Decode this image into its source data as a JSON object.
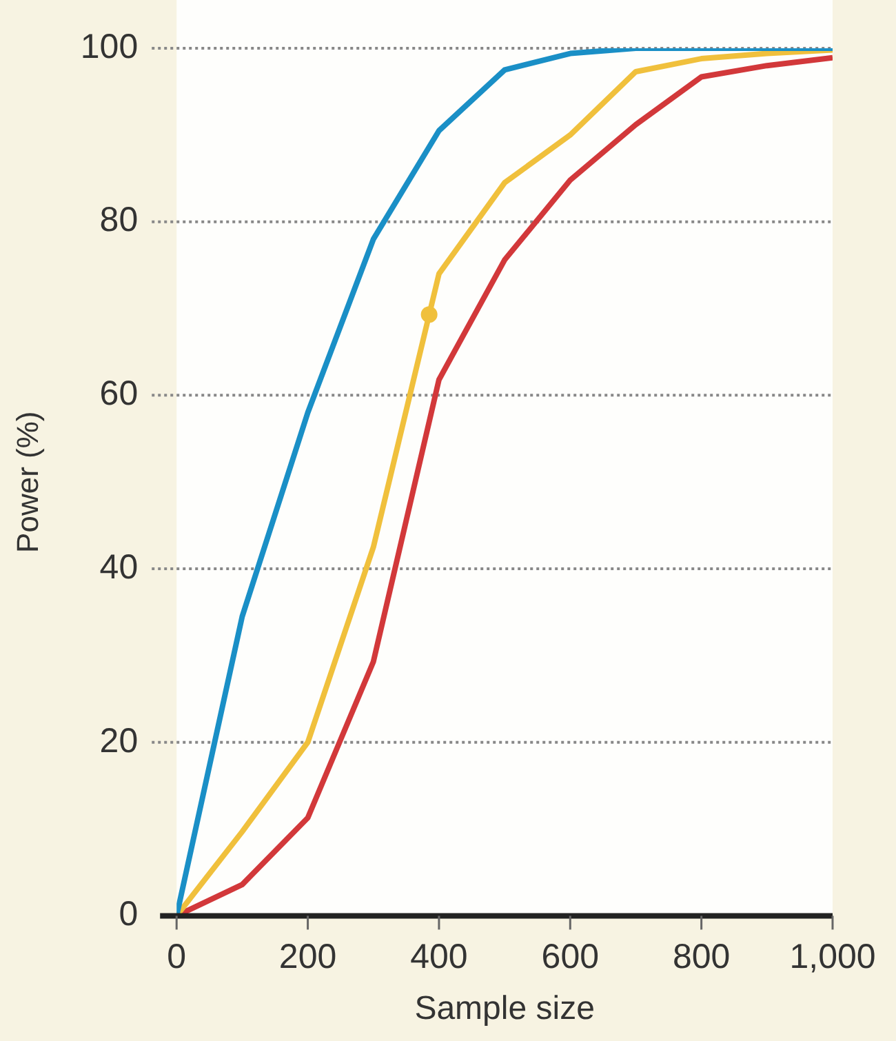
{
  "chart_data": {
    "type": "line",
    "xlabel": "Sample size",
    "ylabel": "Power (%)",
    "x": [
      0,
      100,
      200,
      300,
      400,
      500,
      600,
      700,
      800,
      900,
      1000
    ],
    "series": [
      {
        "color": "#1a8fc6",
        "values": [
          0,
          34.5,
          58,
          78,
          90.5,
          97.5,
          99.4,
          100,
          100,
          100,
          100
        ]
      },
      {
        "color": "#f0c03c",
        "values": [
          0,
          9.7,
          20,
          42.5,
          74,
          84.5,
          90,
          97.3,
          98.8,
          99.4,
          99.8
        ]
      },
      {
        "color": "#d2383a",
        "values": [
          0,
          3.6,
          11.3,
          29.3,
          61.8,
          75.6,
          84.8,
          91.2,
          96.7,
          98,
          98.9
        ]
      },
      {
        "type": "scatter",
        "marker": "circle",
        "color": "#f0c03c",
        "x": [
          385
        ],
        "values": [
          69.3
        ]
      }
    ],
    "xlim": [
      0,
      1000
    ],
    "xticks": [
      0,
      200,
      400,
      600,
      800,
      {
        "value": 1000,
        "label": "1,000"
      }
    ],
    "ylim": [
      0,
      100
    ],
    "yticks": [
      0,
      20,
      40,
      60,
      80,
      100
    ],
    "grid": "y",
    "legend": false,
    "marker": "none",
    "line_style": "solid"
  }
}
